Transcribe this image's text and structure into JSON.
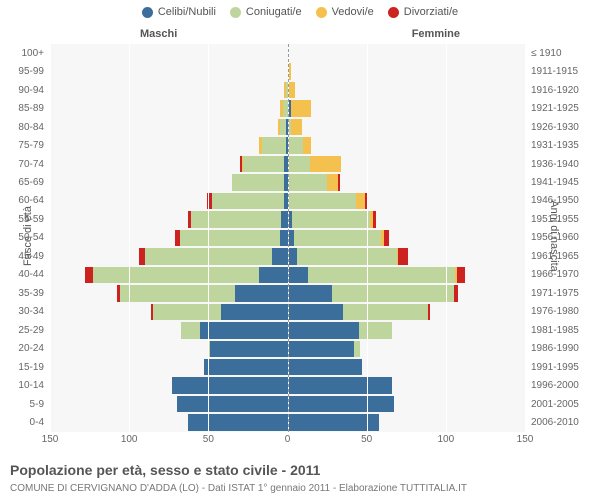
{
  "legend": [
    {
      "label": "Celibi/Nubili",
      "color": "#3b6e9a"
    },
    {
      "label": "Coniugati/e",
      "color": "#bed69d"
    },
    {
      "label": "Vedovi/e",
      "color": "#f4c04e"
    },
    {
      "label": "Divorziati/e",
      "color": "#cc2320"
    }
  ],
  "headers": {
    "male": "Maschi",
    "female": "Femmine"
  },
  "y_axis_left": "Fasce di età",
  "y_axis_right": "Anni di nascita",
  "x_ticks": [
    -150,
    -100,
    -50,
    0,
    50,
    100,
    150
  ],
  "x_max": 150,
  "age_groups": [
    "100+",
    "95-99",
    "90-94",
    "85-89",
    "80-84",
    "75-79",
    "70-74",
    "65-69",
    "60-64",
    "55-59",
    "50-54",
    "45-49",
    "40-44",
    "35-39",
    "30-34",
    "25-29",
    "20-24",
    "15-19",
    "10-14",
    "5-9",
    "0-4"
  ],
  "birth_years": [
    "≤ 1910",
    "1911-1915",
    "1916-1920",
    "1921-1925",
    "1926-1930",
    "1931-1935",
    "1936-1940",
    "1941-1945",
    "1946-1950",
    "1951-1955",
    "1956-1960",
    "1961-1965",
    "1966-1970",
    "1971-1975",
    "1976-1980",
    "1981-1985",
    "1986-1990",
    "1991-1995",
    "1996-2000",
    "2001-2005",
    "2006-2010"
  ],
  "rows": [
    {
      "m": [
        0,
        0,
        0,
        0
      ],
      "f": [
        0,
        0,
        0,
        0
      ]
    },
    {
      "m": [
        0,
        0,
        0,
        0
      ],
      "f": [
        0,
        0,
        2,
        0
      ]
    },
    {
      "m": [
        0,
        1,
        1,
        0
      ],
      "f": [
        0,
        0,
        5,
        0
      ]
    },
    {
      "m": [
        0,
        3,
        2,
        0
      ],
      "f": [
        2,
        0,
        13,
        0
      ]
    },
    {
      "m": [
        1,
        4,
        1,
        0
      ],
      "f": [
        0,
        2,
        7,
        0
      ]
    },
    {
      "m": [
        1,
        15,
        2,
        0
      ],
      "f": [
        1,
        9,
        5,
        0
      ]
    },
    {
      "m": [
        2,
        26,
        1,
        1
      ],
      "f": [
        0,
        14,
        20,
        0
      ]
    },
    {
      "m": [
        2,
        33,
        0,
        0
      ],
      "f": [
        1,
        24,
        7,
        1
      ]
    },
    {
      "m": [
        2,
        46,
        0,
        3
      ],
      "f": [
        1,
        42,
        6,
        2
      ]
    },
    {
      "m": [
        4,
        57,
        0,
        2
      ],
      "f": [
        3,
        49,
        2,
        2
      ]
    },
    {
      "m": [
        5,
        63,
        0,
        3
      ],
      "f": [
        4,
        55,
        2,
        3
      ]
    },
    {
      "m": [
        10,
        80,
        0,
        4
      ],
      "f": [
        6,
        63,
        1,
        6
      ]
    },
    {
      "m": [
        18,
        105,
        0,
        5
      ],
      "f": [
        13,
        93,
        1,
        5
      ]
    },
    {
      "m": [
        33,
        73,
        0,
        2
      ],
      "f": [
        28,
        77,
        0,
        3
      ]
    },
    {
      "m": [
        42,
        43,
        0,
        1
      ],
      "f": [
        35,
        54,
        0,
        1
      ]
    },
    {
      "m": [
        55,
        12,
        0,
        0
      ],
      "f": [
        45,
        21,
        0,
        0
      ]
    },
    {
      "m": [
        49,
        1,
        0,
        0
      ],
      "f": [
        42,
        4,
        0,
        0
      ]
    },
    {
      "m": [
        53,
        0,
        0,
        0
      ],
      "f": [
        47,
        0,
        0,
        0
      ]
    },
    {
      "m": [
        73,
        0,
        0,
        0
      ],
      "f": [
        66,
        0,
        0,
        0
      ]
    },
    {
      "m": [
        70,
        0,
        0,
        0
      ],
      "f": [
        67,
        0,
        0,
        0
      ]
    },
    {
      "m": [
        63,
        0,
        0,
        0
      ],
      "f": [
        58,
        0,
        0,
        0
      ]
    }
  ],
  "title": "Popolazione per età, sesso e stato civile - 2011",
  "subtitle": "COMUNE DI CERVIGNANO D'ADDA (LO) - Dati ISTAT 1° gennaio 2011 - Elaborazione TUTTITALIA.IT"
}
